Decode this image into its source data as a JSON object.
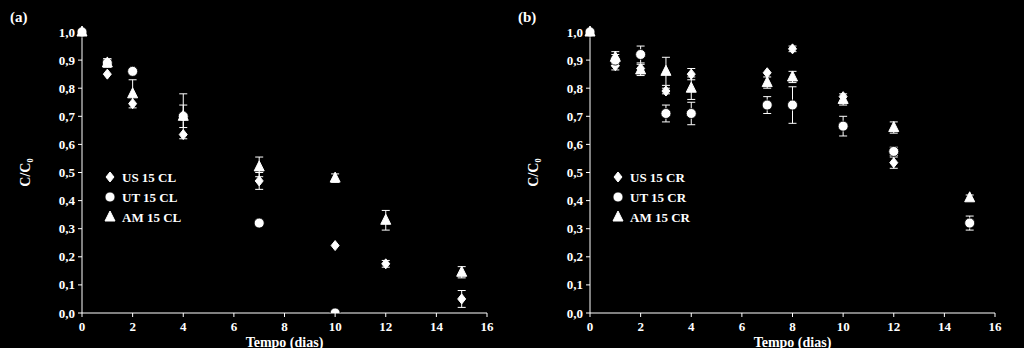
{
  "chart_data": [
    {
      "type": "scatter",
      "title": "(a)",
      "x_label": "Tempo (dias)",
      "y_label": "C/C₀",
      "xlim": [
        0,
        16
      ],
      "xticks": [
        0,
        2,
        4,
        6,
        8,
        10,
        12,
        14,
        16
      ],
      "ylim": [
        0,
        1.0
      ],
      "yticks": [
        {
          "value": 0,
          "label": "0,0"
        },
        {
          "value": 0.1,
          "label": "0,1"
        },
        {
          "value": 0.2,
          "label": "0,2"
        },
        {
          "value": 0.3,
          "label": "0,3"
        },
        {
          "value": 0.4,
          "label": "0,4"
        },
        {
          "value": 0.5,
          "label": "0,5"
        },
        {
          "value": 0.6,
          "label": "0,6"
        },
        {
          "value": 0.7,
          "label": "0,7"
        },
        {
          "value": 0.8,
          "label": "0,8"
        },
        {
          "value": 0.9,
          "label": "0,9"
        },
        {
          "value": 1.0,
          "label": "1,0"
        }
      ],
      "grid": false,
      "legend": "left",
      "x": [
        0,
        1,
        2,
        4,
        7,
        10,
        12,
        15
      ],
      "series": [
        {
          "name": "US 15 CL",
          "color": "#ffffff",
          "marker": "diamond",
          "values": [
            1.0,
            0.85,
            0.745,
            0.635,
            0.47,
            0.24,
            0.175,
            0.05
          ],
          "errors": [
            null,
            null,
            null,
            null,
            0.03,
            null,
            0.012,
            0.03
          ]
        },
        {
          "name": "UT 15 CL",
          "color": "#ffffff",
          "marker": "circle",
          "values": [
            1.0,
            0.89,
            0.86,
            0.7,
            0.32,
            0.0,
            null,
            null
          ],
          "errors": [
            null,
            0.015,
            null,
            0.08,
            null,
            null,
            null,
            null
          ]
        },
        {
          "name": "AM 15 CL",
          "color": "#ffffff",
          "marker": "triangle",
          "values": [
            1.0,
            0.89,
            0.78,
            0.7,
            0.52,
            0.48,
            0.33,
            0.145
          ],
          "errors": [
            null,
            0.015,
            0.05,
            0.04,
            0.035,
            0.015,
            0.035,
            0.02
          ]
        }
      ]
    },
    {
      "type": "scatter",
      "title": "(b)",
      "x_label": "Tempo (dias)",
      "y_label": "C/C₀",
      "xlim": [
        0,
        16
      ],
      "xticks": [
        0,
        2,
        4,
        6,
        8,
        10,
        12,
        14,
        16
      ],
      "ylim": [
        0,
        1.0
      ],
      "yticks": [
        {
          "value": 0,
          "label": "0,0"
        },
        {
          "value": 0.1,
          "label": "0,1"
        },
        {
          "value": 0.2,
          "label": "0,2"
        },
        {
          "value": 0.3,
          "label": "0,3"
        },
        {
          "value": 0.4,
          "label": "0,4"
        },
        {
          "value": 0.5,
          "label": "0,5"
        },
        {
          "value": 0.6,
          "label": "0,6"
        },
        {
          "value": 0.7,
          "label": "0,7"
        },
        {
          "value": 0.8,
          "label": "0,8"
        },
        {
          "value": 0.9,
          "label": "0,9"
        },
        {
          "value": 1.0,
          "label": "1,0"
        }
      ],
      "grid": false,
      "legend": "left",
      "x": [
        0,
        1,
        2,
        3,
        4,
        7,
        8,
        10,
        12,
        15
      ],
      "series": [
        {
          "name": "US 15 CR",
          "color": "#ffffff",
          "marker": "diamond",
          "values": [
            1.0,
            0.88,
            0.87,
            0.79,
            0.85,
            0.855,
            0.94,
            0.77,
            0.535,
            0.32
          ],
          "errors": [
            null,
            0.015,
            null,
            0.01,
            0.02,
            null,
            0.01,
            null,
            0.02,
            null
          ]
        },
        {
          "name": "UT 15 CR",
          "color": "#ffffff",
          "marker": "circle",
          "values": [
            1.0,
            0.9,
            0.92,
            0.71,
            0.71,
            0.74,
            0.74,
            0.665,
            0.575,
            0.32
          ],
          "errors": [
            null,
            0.02,
            0.03,
            0.03,
            0.04,
            0.03,
            0.065,
            0.035,
            0.015,
            0.025
          ]
        },
        {
          "name": "AM 15 CR",
          "color": "#ffffff",
          "marker": "triangle",
          "values": [
            1.0,
            0.91,
            0.865,
            0.86,
            0.8,
            0.82,
            0.84,
            0.76,
            0.66,
            0.41
          ],
          "errors": [
            null,
            0.02,
            0.02,
            0.05,
            0.04,
            0.02,
            0.02,
            0.02,
            0.02,
            0.01
          ]
        }
      ]
    }
  ]
}
